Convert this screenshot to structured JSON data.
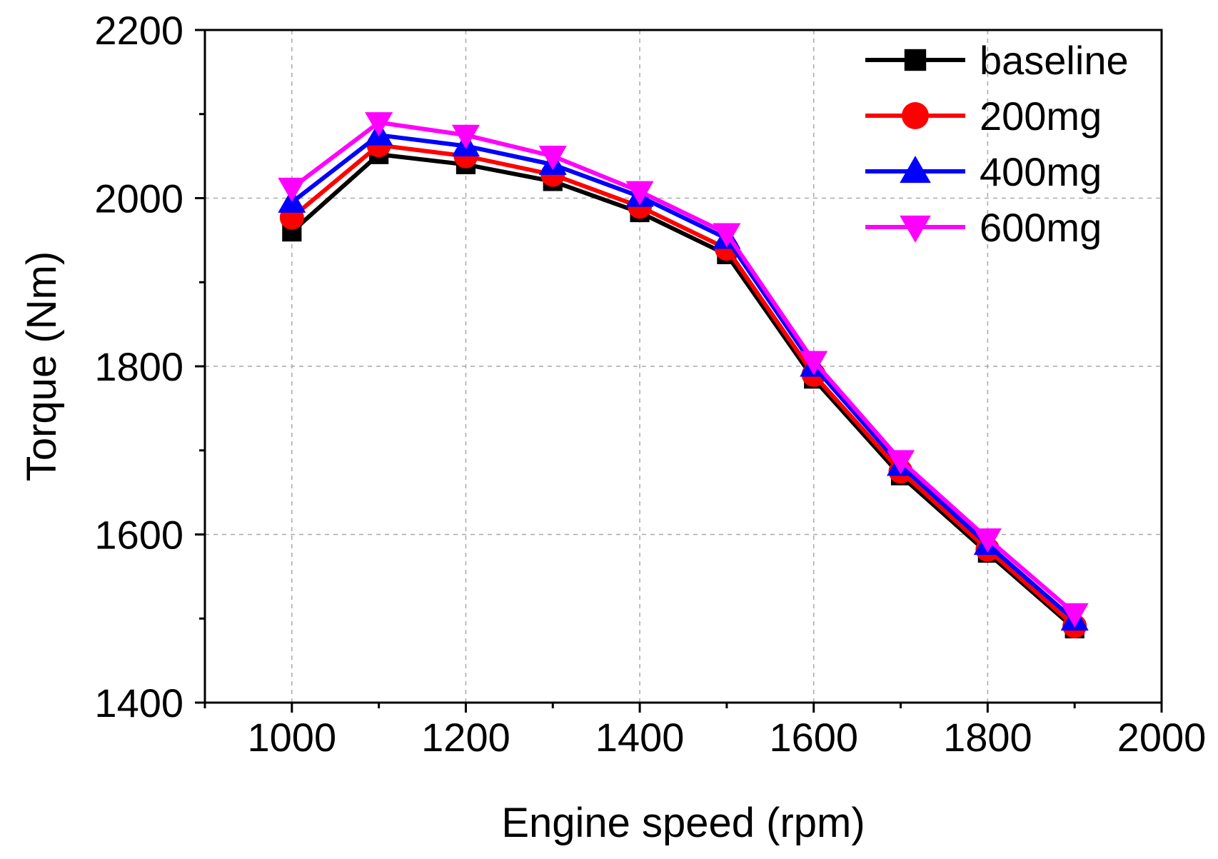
{
  "chart_data": {
    "type": "line",
    "title": "",
    "xlabel": "Engine speed (rpm)",
    "ylabel": "Torque (Nm)",
    "xlim": [
      900,
      2000
    ],
    "ylim": [
      1400,
      2200
    ],
    "grid": true,
    "legend_position": "top-right",
    "xticks": [
      1000,
      1200,
      1400,
      1600,
      1800,
      2000
    ],
    "yticks": [
      1400,
      1600,
      1800,
      2000,
      2200
    ],
    "x": [
      1000,
      1100,
      1200,
      1300,
      1400,
      1500,
      1600,
      1700,
      1800,
      1900
    ],
    "series": [
      {
        "name": "baseline",
        "color": "#000000",
        "marker": "square",
        "values": [
          1960,
          2052,
          2040,
          2020,
          1983,
          1933,
          1785,
          1670,
          1578,
          1488
        ]
      },
      {
        "name": "200mg",
        "color": "#ff0000",
        "marker": "circle",
        "values": [
          1977,
          2063,
          2050,
          2028,
          1990,
          1940,
          1790,
          1675,
          1582,
          1491
        ]
      },
      {
        "name": "400mg",
        "color": "#0000ff",
        "marker": "triangle-up",
        "values": [
          1995,
          2075,
          2062,
          2040,
          2002,
          1952,
          1800,
          1682,
          1588,
          1498
        ]
      },
      {
        "name": "600mg",
        "color": "#ff00ff",
        "marker": "triangle-down",
        "values": [
          2012,
          2090,
          2075,
          2050,
          2008,
          1958,
          1806,
          1688,
          1595,
          1506
        ]
      }
    ]
  }
}
